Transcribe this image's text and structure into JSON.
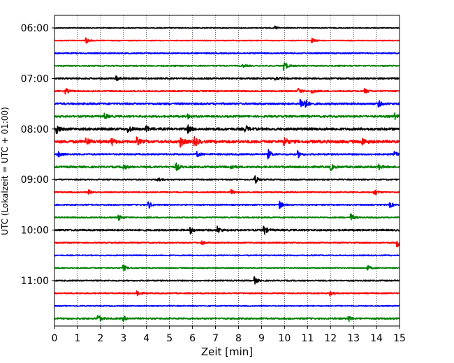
{
  "chart_data": {
    "type": "line",
    "subtype": "helicorder",
    "title": "",
    "xlabel": "Zeit  [min]",
    "ylabel": "UTC (Lokalzeit = UTC + 01:00)",
    "xlim": [
      0,
      15
    ],
    "x_ticks": [
      "0",
      "1",
      "2",
      "3",
      "4",
      "5",
      "6",
      "7",
      "8",
      "9",
      "10",
      "11",
      "12",
      "13",
      "14",
      "15"
    ],
    "row_minutes": 15,
    "y_ticks": [
      {
        "label": "06:00",
        "row": 0
      },
      {
        "label": "07:00",
        "row": 4
      },
      {
        "label": "08:00",
        "row": 8
      },
      {
        "label": "09:00",
        "row": 12
      },
      {
        "label": "10:00",
        "row": 16
      },
      {
        "label": "11:00",
        "row": 20
      }
    ],
    "grid": "vertical dotted lines at each minute",
    "colors": [
      "#000000",
      "#ff0000",
      "#0000ff",
      "#008000"
    ],
    "traces": [
      {
        "start": "06:00",
        "noise": 0.25,
        "events": [
          [
            9.6,
            1.0
          ]
        ]
      },
      {
        "start": "06:15",
        "noise": 0.25,
        "events": [
          [
            1.4,
            1.6
          ],
          [
            11.2,
            1.3
          ]
        ]
      },
      {
        "start": "06:30",
        "noise": 0.35,
        "events": []
      },
      {
        "start": "06:45",
        "noise": 0.35,
        "events": [
          [
            10.0,
            2.8
          ],
          [
            8.2,
            0.8
          ]
        ]
      },
      {
        "start": "07:00",
        "noise": 0.45,
        "events": [
          [
            2.7,
            1.6
          ],
          [
            9.6,
            1.0
          ]
        ]
      },
      {
        "start": "07:15",
        "noise": 0.4,
        "events": [
          [
            0.5,
            1.5
          ],
          [
            10.6,
            1.6
          ],
          [
            11.2,
            1.1
          ],
          [
            13.5,
            1.5
          ]
        ]
      },
      {
        "start": "07:30",
        "noise": 0.55,
        "events": [
          [
            10.7,
            3.2
          ],
          [
            10.9,
            2.4
          ],
          [
            14.1,
            1.6
          ]
        ]
      },
      {
        "start": "07:45",
        "noise": 0.55,
        "events": [
          [
            2.2,
            1.5
          ],
          [
            5.8,
            1.2
          ],
          [
            14.8,
            1.5
          ]
        ]
      },
      {
        "start": "08:00",
        "noise": 0.7,
        "events": [
          [
            0.1,
            2.8
          ],
          [
            3.2,
            2.2
          ],
          [
            4.0,
            1.4
          ],
          [
            5.8,
            2.0
          ],
          [
            8.3,
            2.0
          ]
        ]
      },
      {
        "start": "08:15",
        "noise": 0.8,
        "events": [
          [
            1.4,
            2.2
          ],
          [
            2.5,
            1.8
          ],
          [
            3.6,
            2.0
          ],
          [
            5.5,
            2.8
          ],
          [
            6.1,
            3.0
          ],
          [
            10.0,
            2.6
          ],
          [
            13.4,
            2.0
          ]
        ]
      },
      {
        "start": "08:30",
        "noise": 0.45,
        "events": [
          [
            0.2,
            1.8
          ],
          [
            6.2,
            1.6
          ],
          [
            9.3,
            2.6
          ],
          [
            10.6,
            1.8
          ],
          [
            14.8,
            1.4
          ]
        ]
      },
      {
        "start": "08:45",
        "noise": 0.55,
        "events": [
          [
            3.0,
            1.4
          ],
          [
            5.3,
            2.2
          ],
          [
            7.7,
            1.4
          ],
          [
            12.0,
            2.0
          ],
          [
            14.1,
            1.6
          ]
        ]
      },
      {
        "start": "09:00",
        "noise": 0.35,
        "events": [
          [
            8.7,
            3.0
          ],
          [
            4.5,
            1.0
          ]
        ]
      },
      {
        "start": "09:15",
        "noise": 0.35,
        "events": [
          [
            1.5,
            1.2
          ],
          [
            7.7,
            1.3
          ],
          [
            13.9,
            2.2
          ]
        ]
      },
      {
        "start": "09:30",
        "noise": 0.35,
        "events": [
          [
            4.1,
            2.0
          ],
          [
            9.8,
            2.0
          ],
          [
            14.6,
            1.5
          ]
        ]
      },
      {
        "start": "09:45",
        "noise": 0.35,
        "events": [
          [
            2.8,
            1.6
          ],
          [
            12.9,
            2.1
          ]
        ]
      },
      {
        "start": "10:00",
        "noise": 0.5,
        "events": [
          [
            5.9,
            2.0
          ],
          [
            7.1,
            2.0
          ],
          [
            9.1,
            3.0
          ]
        ]
      },
      {
        "start": "10:15",
        "noise": 0.35,
        "events": [
          [
            6.4,
            1.2
          ],
          [
            14.9,
            3.0
          ]
        ]
      },
      {
        "start": "10:30",
        "noise": 0.3,
        "events": []
      },
      {
        "start": "10:45",
        "noise": 0.3,
        "events": [
          [
            3.0,
            1.8
          ],
          [
            13.6,
            1.8
          ]
        ]
      },
      {
        "start": "11:00",
        "noise": 0.35,
        "events": [
          [
            8.7,
            2.0
          ]
        ]
      },
      {
        "start": "11:15",
        "noise": 0.35,
        "events": [
          [
            3.6,
            2.0
          ],
          [
            12.0,
            1.2
          ]
        ]
      },
      {
        "start": "11:30",
        "noise": 0.3,
        "events": []
      },
      {
        "start": "11:45",
        "noise": 0.45,
        "events": [
          [
            1.9,
            2.4
          ],
          [
            3.0,
            1.4
          ],
          [
            12.8,
            1.8
          ]
        ]
      }
    ]
  }
}
